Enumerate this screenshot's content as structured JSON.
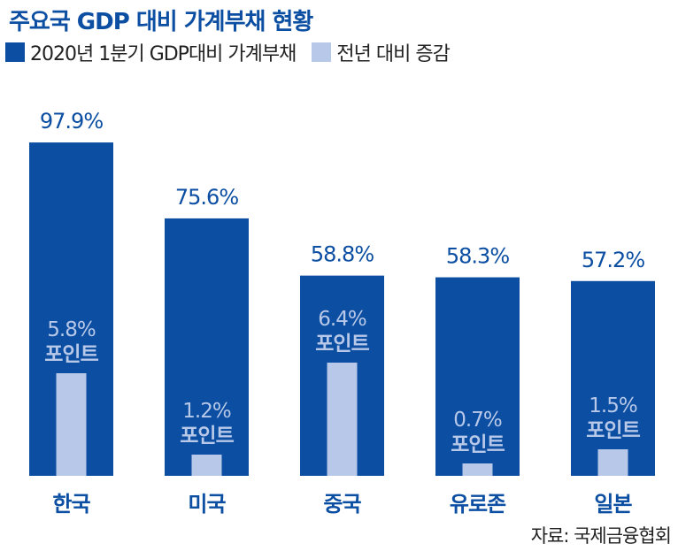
{
  "title": "주요국 GDP 대비 가계부채 현황",
  "legend": {
    "series1": "2020년 1분기 GDP대비 가계부채",
    "series2": "전년 대비 증감"
  },
  "colors": {
    "primary": "#0b4ea2",
    "secondary": "#b8c8e8",
    "label_on_bar": "#b8c8e8",
    "title": "#0b4ea2"
  },
  "source": "자료: 국제금융협회",
  "chart_data": {
    "type": "bar",
    "categories": [
      "한국",
      "미국",
      "중국",
      "유로존",
      "일본"
    ],
    "series": [
      {
        "name": "2020년 1분기 GDP대비 가계부채",
        "values": [
          97.9,
          75.6,
          58.8,
          58.3,
          57.2
        ]
      },
      {
        "name": "전년 대비 증감",
        "values": [
          5.8,
          1.2,
          6.4,
          0.7,
          1.5
        ]
      }
    ],
    "value_labels": [
      "97.9%",
      "75.6%",
      "58.8%",
      "58.3%",
      "57.2%"
    ],
    "change_labels": [
      "5.8%",
      "1.2%",
      "6.4%",
      "0.7%",
      "1.5%"
    ],
    "change_unit": "포인트",
    "title": "주요국 GDP 대비 가계부채 현황",
    "xlabel": "",
    "ylabel": "",
    "ylim": [
      0,
      100
    ],
    "grid": false,
    "legend_position": "top-left"
  }
}
